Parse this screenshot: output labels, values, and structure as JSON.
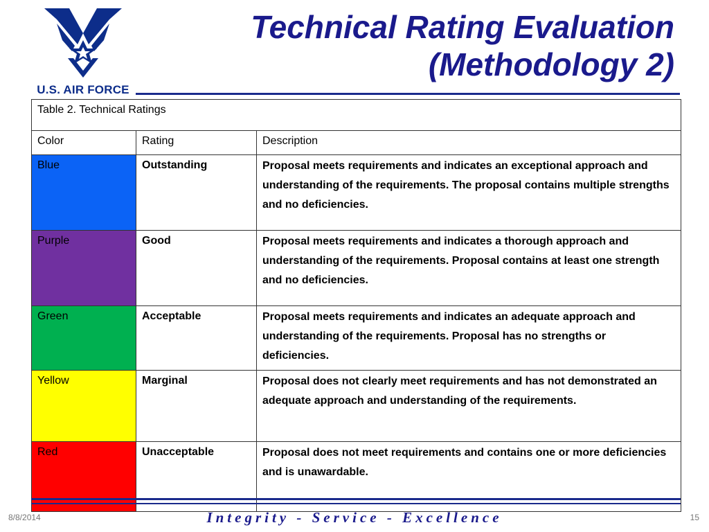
{
  "slide": {
    "title_line1": "Technical Rating Evaluation",
    "title_line2": "(Methodology 2)",
    "logo_text": "U.S. AIR FORCE",
    "date": "8/8/2014",
    "page_number": "15",
    "motto": "Integrity - Service - Excellence"
  },
  "table": {
    "caption": "Table 2. Technical Ratings",
    "headers": {
      "color": "Color",
      "rating": "Rating",
      "description": "Description"
    },
    "rows": [
      {
        "color": "Blue",
        "swatch": "#0b63f6",
        "rating": "Outstanding",
        "description": "Proposal meets requirements and indicates an exceptional approach and understanding of the requirements. The proposal contains multiple strengths and no deficiencies."
      },
      {
        "color": "Purple",
        "swatch": "#7030a0",
        "rating": "Good",
        "description": "Proposal meets requirements and indicates a thorough approach and understanding of the requirements. Proposal contains at least one strength and no deficiencies."
      },
      {
        "color": "Green",
        "swatch": "#00b050",
        "rating": "Acceptable",
        "description": "Proposal meets requirements and indicates an adequate approach and understanding of the requirements. Proposal has no strengths or deficiencies."
      },
      {
        "color": "Yellow",
        "swatch": "#ffff00",
        "rating": "Marginal",
        "description": "Proposal does not clearly meet requirements and has not demonstrated an adequate approach and understanding of the requirements."
      },
      {
        "color": "Red",
        "swatch": "#ff0000",
        "rating": "Unacceptable",
        "description": "Proposal does not meet requirements and contains one or more deficiencies and is unawardable."
      }
    ]
  }
}
